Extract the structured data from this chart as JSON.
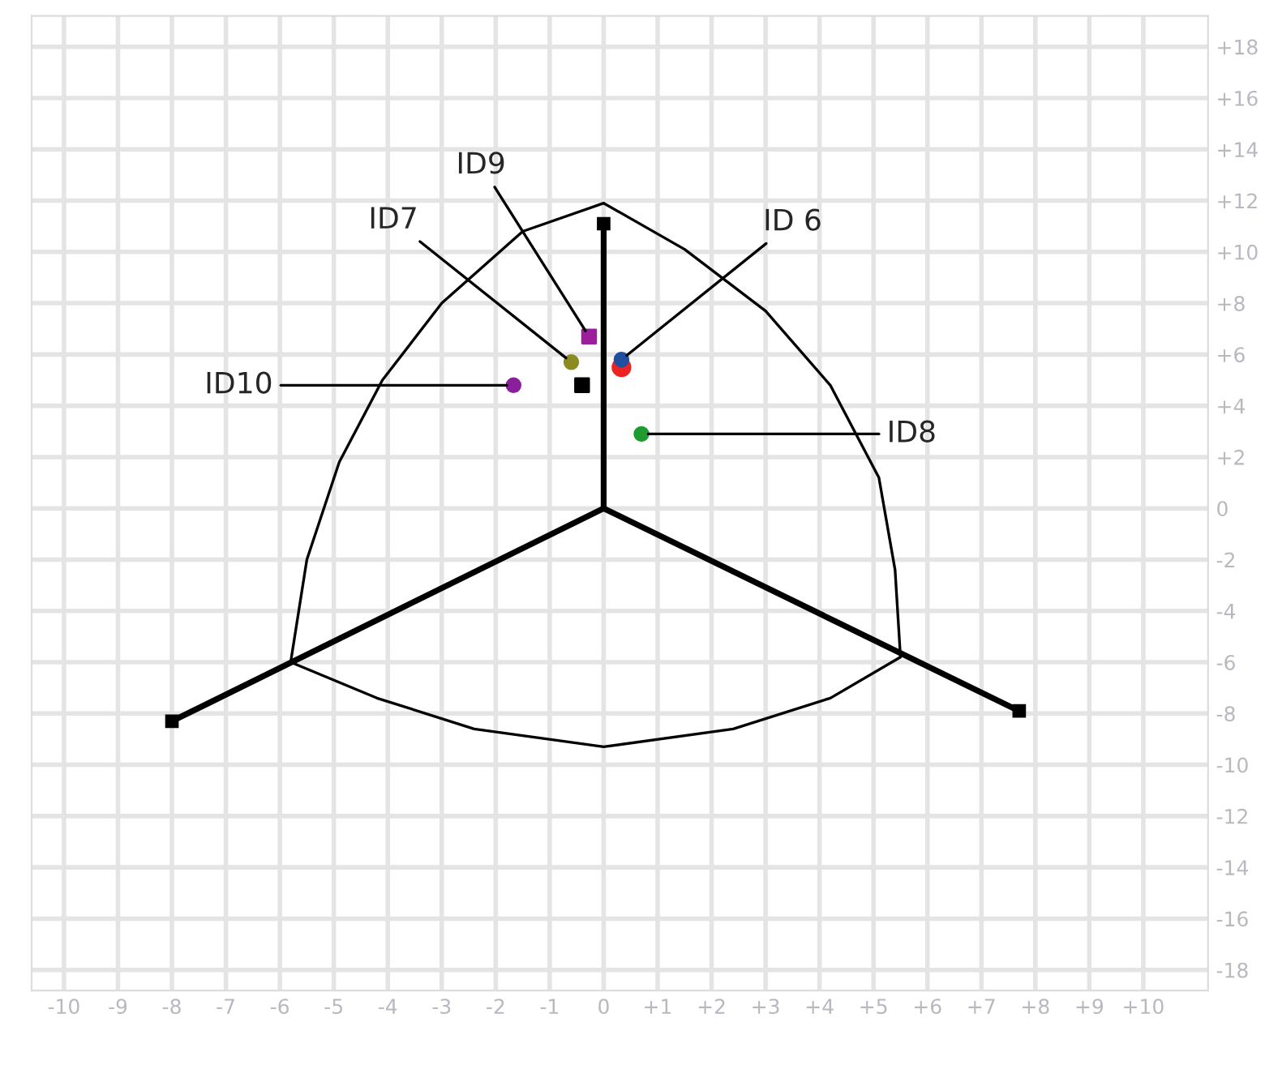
{
  "chart_data": {
    "type": "scatter",
    "xlim": [
      -10.6,
      11.2
    ],
    "ylim": [
      -18.8,
      19.2
    ],
    "xticks": [
      {
        "value": -10,
        "label": "-10"
      },
      {
        "value": -9,
        "label": "-9"
      },
      {
        "value": -8,
        "label": "-8"
      },
      {
        "value": -7,
        "label": "-7"
      },
      {
        "value": -6,
        "label": "-6"
      },
      {
        "value": -5,
        "label": "-5"
      },
      {
        "value": -4,
        "label": "-4"
      },
      {
        "value": -3,
        "label": "-3"
      },
      {
        "value": -2,
        "label": "-2"
      },
      {
        "value": -1,
        "label": "-1"
      },
      {
        "value": 0,
        "label": "0"
      },
      {
        "value": 1,
        "label": "+1"
      },
      {
        "value": 2,
        "label": "+2"
      },
      {
        "value": 3,
        "label": "+3"
      },
      {
        "value": 4,
        "label": "+4"
      },
      {
        "value": 5,
        "label": "+5"
      },
      {
        "value": 6,
        "label": "+6"
      },
      {
        "value": 7,
        "label": "+7"
      },
      {
        "value": 8,
        "label": "+8"
      },
      {
        "value": 9,
        "label": "+9"
      },
      {
        "value": 10,
        "label": "+10"
      }
    ],
    "yticks": [
      {
        "value": 18,
        "label": "+18"
      },
      {
        "value": 16,
        "label": "+16"
      },
      {
        "value": 14,
        "label": "+14"
      },
      {
        "value": 12,
        "label": "+12"
      },
      {
        "value": 10,
        "label": "+10"
      },
      {
        "value": 8,
        "label": "+8"
      },
      {
        "value": 6,
        "label": "+6"
      },
      {
        "value": 4,
        "label": "+4"
      },
      {
        "value": 2,
        "label": "+2"
      },
      {
        "value": 0,
        "label": "0"
      },
      {
        "value": -2,
        "label": "-2"
      },
      {
        "value": -4,
        "label": "-4"
      },
      {
        "value": -6,
        "label": "-6"
      },
      {
        "value": -8,
        "label": "-8"
      },
      {
        "value": -10,
        "label": "-10"
      },
      {
        "value": -12,
        "label": "-12"
      },
      {
        "value": -14,
        "label": "-14"
      },
      {
        "value": -16,
        "label": "-16"
      },
      {
        "value": -18,
        "label": "-18"
      }
    ],
    "grid": true,
    "series": [
      {
        "type": "line",
        "color": "#000000",
        "x": [
          0,
          0
        ],
        "values": [
          0,
          11.1
        ]
      },
      {
        "type": "line",
        "color": "#000000",
        "x": [
          0,
          -8.0
        ],
        "values": [
          0,
          -8.3
        ]
      },
      {
        "type": "line",
        "color": "#000000",
        "x": [
          0,
          7.7
        ],
        "values": [
          0,
          -7.9
        ]
      },
      {
        "type": "line",
        "color": "#000000",
        "x": [
          0,
          -1.5,
          -3.0,
          -4.1,
          -4.9,
          -5.5,
          -5.8
        ],
        "values": [
          11.9,
          10.8,
          8.0,
          5.0,
          1.8,
          -2.0,
          -6.0
        ]
      },
      {
        "type": "line",
        "color": "#000000",
        "x": [
          0,
          1.5,
          3.0,
          4.2,
          5.1,
          5.4,
          5.5
        ],
        "values": [
          11.9,
          10.1,
          7.7,
          4.8,
          1.2,
          -2.4,
          -5.8
        ]
      },
      {
        "type": "line",
        "color": "#000000",
        "x": [
          -5.8,
          -4.2,
          -2.4,
          0,
          2.4,
          4.2,
          5.5
        ],
        "values": [
          -6.0,
          -7.4,
          -8.6,
          -9.3,
          -8.6,
          -7.4,
          -5.8
        ]
      },
      {
        "color": "#ee2222",
        "marker": "circle",
        "x": [
          0.33
        ],
        "values": [
          5.5
        ]
      },
      {
        "color": "#1f4f9f",
        "marker": "circle",
        "x": [
          0.33
        ],
        "values": [
          5.8
        ]
      },
      {
        "color": "#8b8b1f",
        "marker": "circle",
        "x": [
          -0.6
        ],
        "values": [
          5.7
        ]
      },
      {
        "color": "#9b1f9b",
        "marker": "square",
        "x": [
          -0.27
        ],
        "values": [
          6.7
        ]
      },
      {
        "color": "#000000",
        "marker": "square",
        "x": [
          -0.4
        ],
        "values": [
          4.8
        ]
      },
      {
        "color": "#8a1f9b",
        "marker": "circle",
        "x": [
          -1.67
        ],
        "values": [
          4.8
        ]
      },
      {
        "color": "#1f9b2f",
        "marker": "circle",
        "x": [
          0.7
        ],
        "values": [
          2.9
        ]
      }
    ],
    "annotations": [
      {
        "text": "ID9",
        "x": -0.27,
        "y": 6.7
      },
      {
        "text": "ID7",
        "x": -0.6,
        "y": 5.7
      },
      {
        "text": "ID 6",
        "x": 0.33,
        "y": 5.8
      },
      {
        "text": "ID10",
        "x": -1.67,
        "y": 4.8
      },
      {
        "text": "ID8",
        "x": 0.7,
        "y": 2.9
      }
    ]
  }
}
